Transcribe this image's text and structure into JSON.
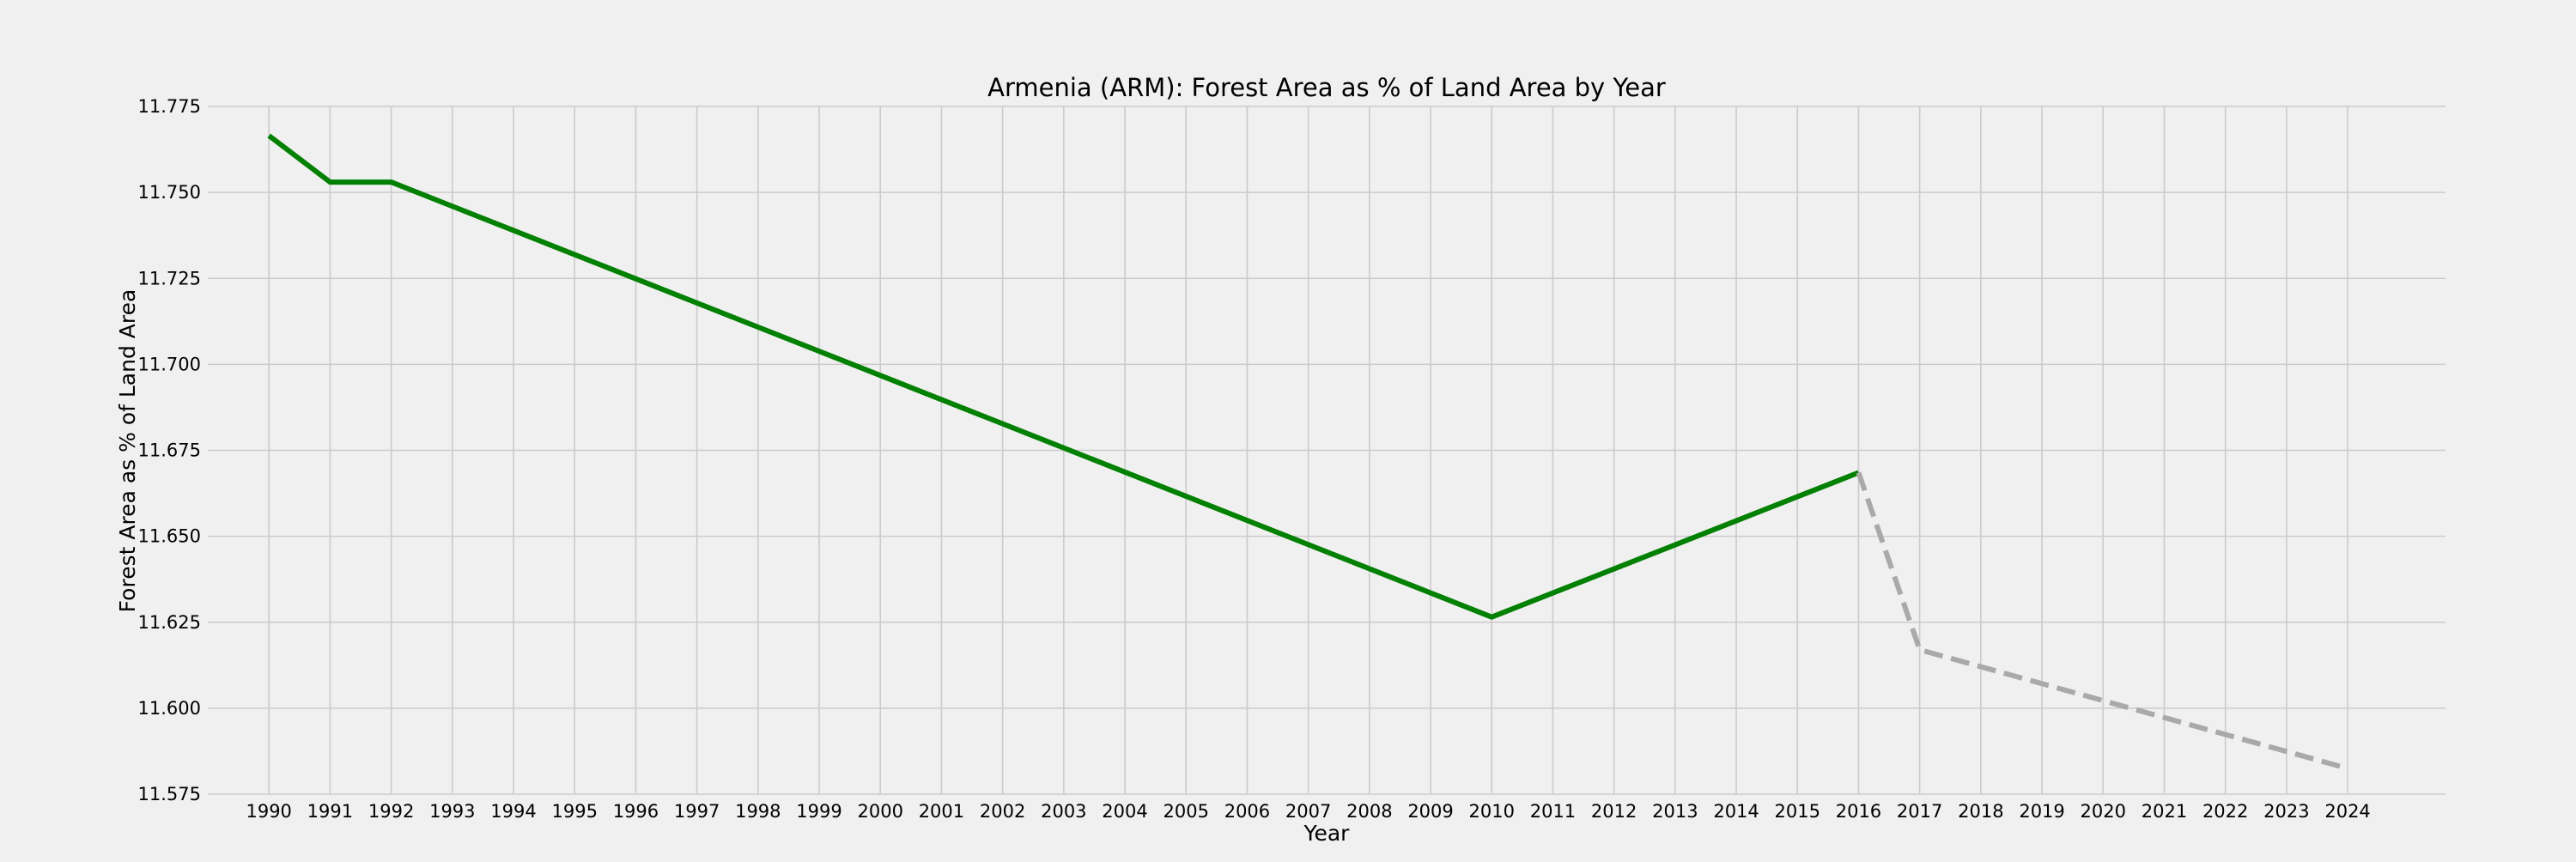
{
  "chart_data": {
    "type": "line",
    "title": "Armenia (ARM): Forest Area as % of Land Area by Year",
    "xlabel": "Year",
    "ylabel": "Forest Area as % of Land Area",
    "ylim": [
      11.575,
      11.775
    ],
    "xlim": [
      1989,
      2025.6
    ],
    "grid": true,
    "x_ticks": [
      1990,
      1991,
      1992,
      1993,
      1994,
      1995,
      1996,
      1997,
      1998,
      1999,
      2000,
      2001,
      2002,
      2003,
      2004,
      2005,
      2006,
      2007,
      2008,
      2009,
      2010,
      2011,
      2012,
      2013,
      2014,
      2015,
      2016,
      2017,
      2018,
      2019,
      2020,
      2021,
      2022,
      2023,
      2024
    ],
    "y_ticks": [
      11.575,
      11.6,
      11.625,
      11.65,
      11.675,
      11.7,
      11.725,
      11.75,
      11.775
    ],
    "y_tick_labels": [
      "11.575",
      "11.600",
      "11.625",
      "11.650",
      "11.675",
      "11.700",
      "11.725",
      "11.750",
      "11.775"
    ],
    "series": [
      {
        "style": "solid",
        "color": "#008000",
        "x": [
          1990,
          1991,
          1992,
          2010,
          2016
        ],
        "y": [
          11.7665,
          11.753,
          11.753,
          11.6265,
          11.6685
        ]
      },
      {
        "style": "dashed",
        "color": "#a9a9a9",
        "x": [
          2016,
          2017,
          2024
        ],
        "y": [
          11.6685,
          11.617,
          11.5825
        ]
      }
    ]
  }
}
